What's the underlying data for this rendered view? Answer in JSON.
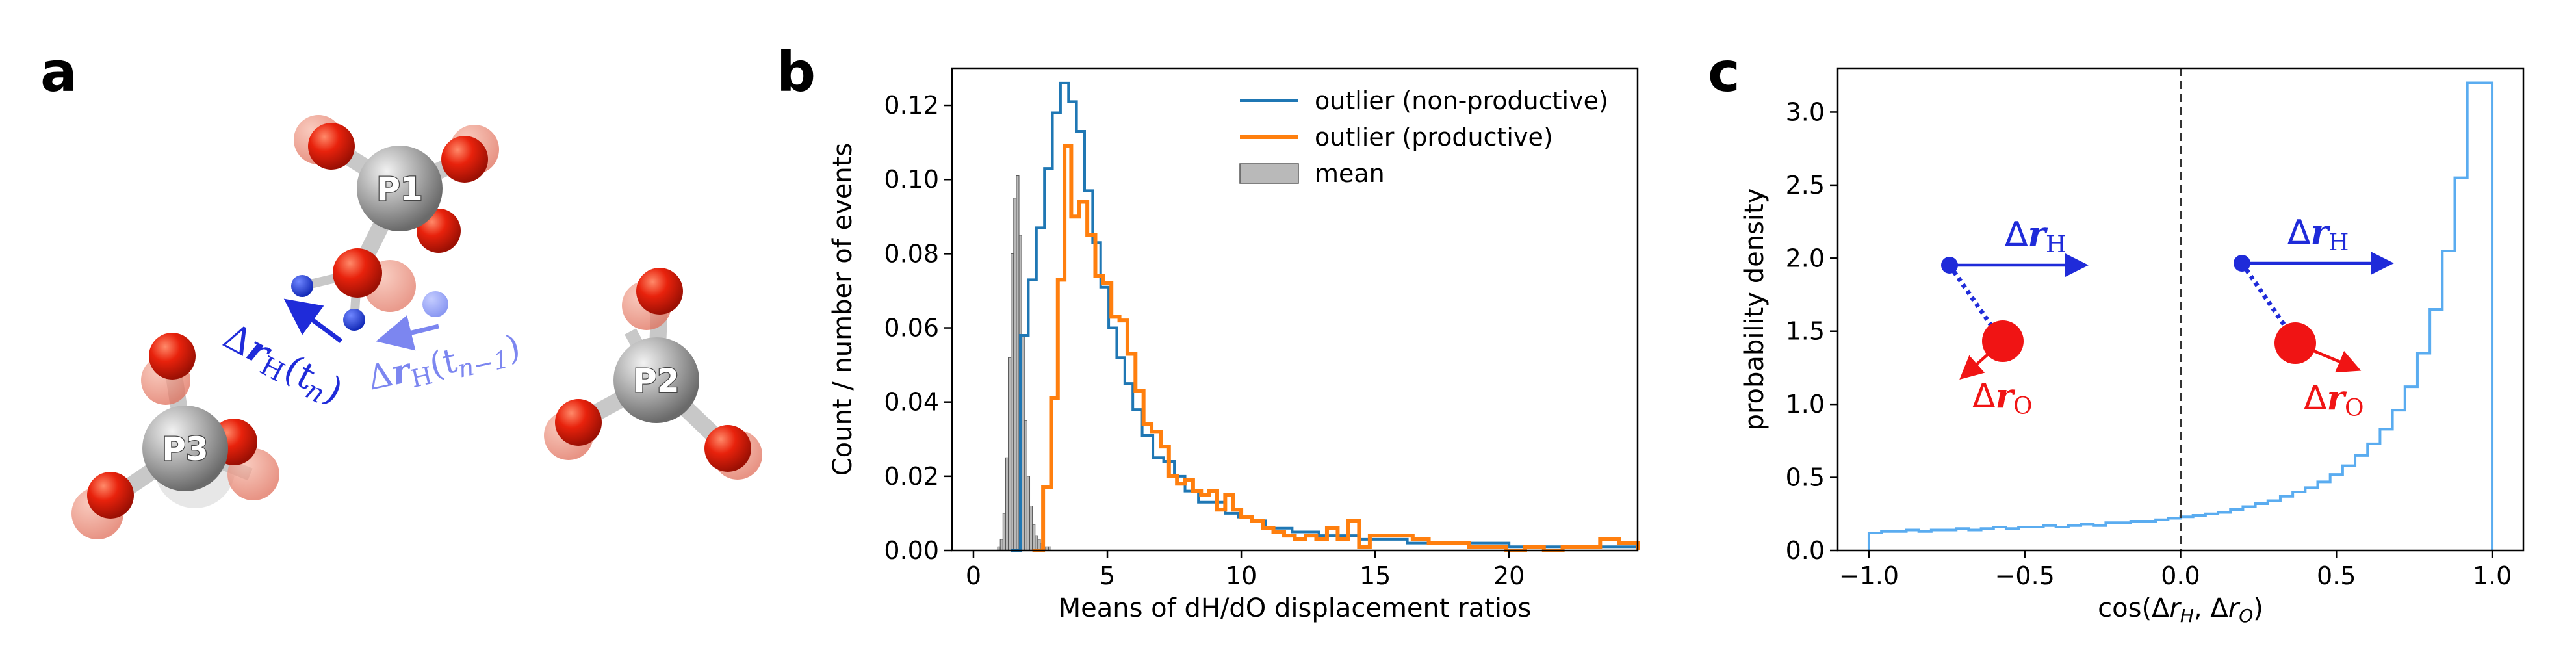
{
  "panels": {
    "a": {
      "letter": "a",
      "atoms": {
        "p1": "P1",
        "p2": "P2",
        "p3": "P3"
      },
      "labels": {
        "current": {
          "prefix": "Δ",
          "main": "r",
          "sub": "H",
          "arg": "(t",
          "argsub": "n",
          "close": ")"
        },
        "previous": {
          "prefix": "Δ",
          "main": "r",
          "sub": "H",
          "arg": "(t",
          "argsub": "n−1",
          "close": ")"
        }
      },
      "colors": {
        "current": "#1f2bd9",
        "previous": "#7c86f0",
        "oxygen": "#e8220c",
        "phosphorus": "#9a9a9a",
        "hydrogen": "#1c37d6"
      }
    },
    "b": {
      "letter": "b",
      "legend": [
        {
          "label": "outlier (non-productive)",
          "color": "#1f77b4",
          "kind": "line"
        },
        {
          "label": "outlier (productive)",
          "color": "#ff7f0e",
          "kind": "line"
        },
        {
          "label": "mean",
          "color": "#808080",
          "kind": "patch"
        }
      ]
    },
    "c": {
      "letter": "c",
      "insets": {
        "left": {
          "h_label": {
            "prefix": "Δ",
            "main": "r",
            "sub": "H"
          },
          "o_label": {
            "prefix": "Δ",
            "main": "r",
            "sub": "O"
          }
        },
        "right": {
          "h_label": {
            "prefix": "Δ",
            "main": "r",
            "sub": "H"
          },
          "o_label": {
            "prefix": "Δ",
            "main": "r",
            "sub": "O"
          }
        }
      },
      "colors": {
        "h": "#1f2bd9",
        "o": "#f01414"
      }
    }
  },
  "chart_data": [
    {
      "id": "b",
      "type": "histogram",
      "title": "",
      "xlabel": "Means of dH/dO displacement ratios",
      "ylabel": "Count / number of events",
      "xlim": [
        -0.8,
        24.8
      ],
      "ylim": [
        0,
        0.13
      ],
      "xticks": [
        0,
        5,
        10,
        15,
        20
      ],
      "yticks": [
        0.0,
        0.02,
        0.04,
        0.06,
        0.08,
        0.1,
        0.12
      ],
      "ytick_labels": [
        "0.00",
        "0.02",
        "0.04",
        "0.06",
        "0.08",
        "0.10",
        "0.12"
      ],
      "grid": false,
      "legend_position": "top-right",
      "series": [
        {
          "name": "outlier (non-productive)",
          "kind": "step",
          "color": "#1f77b4",
          "bin_edges": [
            1.4,
            1.75,
            2.05,
            2.35,
            2.65,
            2.95,
            3.25,
            3.55,
            3.85,
            4.15,
            4.45,
            4.75,
            5.05,
            5.35,
            5.65,
            5.95,
            6.3,
            6.7,
            7.1,
            7.5,
            7.9,
            8.4,
            8.9,
            9.4,
            9.9,
            10.4,
            10.9,
            11.4,
            11.9,
            12.4,
            12.9,
            13.4,
            13.9,
            14.4,
            14.9,
            15.4,
            16.2,
            17.0,
            18.0,
            19.0,
            20.0,
            21.0,
            22.0,
            23.0,
            24.0,
            24.8
          ],
          "values": [
            0.0,
            0.058,
            0.073,
            0.087,
            0.103,
            0.118,
            0.126,
            0.121,
            0.113,
            0.097,
            0.083,
            0.071,
            0.06,
            0.052,
            0.045,
            0.038,
            0.031,
            0.025,
            0.024,
            0.02,
            0.016,
            0.013,
            0.013,
            0.01,
            0.009,
            0.008,
            0.006,
            0.006,
            0.005,
            0.005,
            0.004,
            0.004,
            0.004,
            0.003,
            0.003,
            0.003,
            0.002,
            0.002,
            0.002,
            0.002,
            0.001,
            0.001,
            0.001,
            0.001,
            0.001
          ]
        },
        {
          "name": "outlier (productive)",
          "kind": "step",
          "color": "#ff7f0e",
          "bin_edges": [
            2.2,
            2.6,
            2.9,
            3.15,
            3.4,
            3.65,
            3.95,
            4.25,
            4.55,
            4.85,
            5.15,
            5.45,
            5.75,
            6.05,
            6.35,
            6.65,
            7.0,
            7.3,
            7.6,
            7.9,
            8.2,
            8.5,
            8.8,
            9.1,
            9.4,
            9.7,
            10.0,
            10.4,
            10.8,
            11.2,
            11.6,
            12.0,
            12.4,
            12.8,
            13.2,
            13.6,
            14.0,
            14.4,
            14.8,
            15.2,
            15.8,
            16.4,
            17.0,
            17.8,
            18.5,
            19.2,
            19.9,
            20.6,
            21.3,
            22.0,
            22.7,
            23.4,
            24.1,
            24.8
          ],
          "values": [
            0.0,
            0.017,
            0.041,
            0.073,
            0.109,
            0.09,
            0.094,
            0.085,
            0.074,
            0.072,
            0.063,
            0.062,
            0.053,
            0.043,
            0.034,
            0.032,
            0.028,
            0.02,
            0.018,
            0.019,
            0.016,
            0.015,
            0.016,
            0.011,
            0.015,
            0.011,
            0.009,
            0.008,
            0.006,
            0.005,
            0.004,
            0.003,
            0.004,
            0.003,
            0.006,
            0.003,
            0.008,
            0.001,
            0.004,
            0.004,
            0.004,
            0.003,
            0.002,
            0.002,
            0.001,
            0.001,
            0.0,
            0.001,
            0.0,
            0.001,
            0.001,
            0.003,
            0.002
          ]
        },
        {
          "name": "mean",
          "kind": "bar",
          "color": "#808080",
          "bin_edges": [
            0.9,
            1.0,
            1.1,
            1.2,
            1.3,
            1.4,
            1.5,
            1.6,
            1.7,
            1.8,
            1.9,
            2.0,
            2.1,
            2.2,
            2.3,
            2.4,
            2.5,
            2.6,
            2.7,
            2.8,
            2.9,
            3.0
          ],
          "values": [
            0.001,
            0.003,
            0.01,
            0.025,
            0.052,
            0.08,
            0.095,
            0.101,
            0.085,
            0.058,
            0.035,
            0.02,
            0.012,
            0.007,
            0.004,
            0.003,
            0.002,
            0.001,
            0.001,
            0.001,
            0.0
          ]
        }
      ]
    },
    {
      "id": "c",
      "type": "histogram",
      "title": "",
      "xlabel": "cos(Δr_H, Δr_O)",
      "xlabel_parts": {
        "pre": "cos(Δ",
        "r1": "r",
        "s1": "H",
        "mid": ", Δ",
        "r2": "r",
        "s2": "O",
        "post": ")"
      },
      "ylabel": "probability density",
      "xlim": [
        -1.1,
        1.1
      ],
      "ylim": [
        0,
        3.3
      ],
      "xticks": [
        -1.0,
        -0.5,
        0.0,
        0.5,
        1.0
      ],
      "xtick_labels": [
        "−1.0",
        "−0.5",
        "0.0",
        "0.5",
        "1.0"
      ],
      "yticks": [
        0.0,
        0.5,
        1.0,
        1.5,
        2.0,
        2.5,
        3.0
      ],
      "ytick_labels": [
        "0.0",
        "0.5",
        "1.0",
        "1.5",
        "2.0",
        "2.5",
        "3.0"
      ],
      "grid": false,
      "reference_line_x": 0.0,
      "series": [
        {
          "name": "",
          "kind": "step",
          "color": "#5aacf0",
          "bin_edges": [
            -1.0,
            -0.96,
            -0.92,
            -0.88,
            -0.84,
            -0.8,
            -0.76,
            -0.72,
            -0.68,
            -0.64,
            -0.6,
            -0.56,
            -0.52,
            -0.48,
            -0.44,
            -0.4,
            -0.36,
            -0.32,
            -0.28,
            -0.24,
            -0.2,
            -0.16,
            -0.12,
            -0.08,
            -0.04,
            0.0,
            0.04,
            0.08,
            0.12,
            0.16,
            0.2,
            0.24,
            0.28,
            0.32,
            0.36,
            0.4,
            0.44,
            0.48,
            0.52,
            0.56,
            0.6,
            0.64,
            0.68,
            0.72,
            0.76,
            0.8,
            0.84,
            0.88,
            0.92,
            0.96,
            1.0
          ],
          "values": [
            0.12,
            0.13,
            0.13,
            0.14,
            0.13,
            0.14,
            0.14,
            0.15,
            0.14,
            0.15,
            0.16,
            0.15,
            0.16,
            0.16,
            0.17,
            0.16,
            0.17,
            0.18,
            0.17,
            0.19,
            0.19,
            0.2,
            0.2,
            0.21,
            0.22,
            0.23,
            0.24,
            0.25,
            0.26,
            0.28,
            0.3,
            0.32,
            0.34,
            0.37,
            0.4,
            0.43,
            0.47,
            0.52,
            0.58,
            0.65,
            0.73,
            0.83,
            0.96,
            1.12,
            1.35,
            1.65,
            2.05,
            2.55,
            3.2,
            3.2
          ]
        }
      ]
    }
  ]
}
